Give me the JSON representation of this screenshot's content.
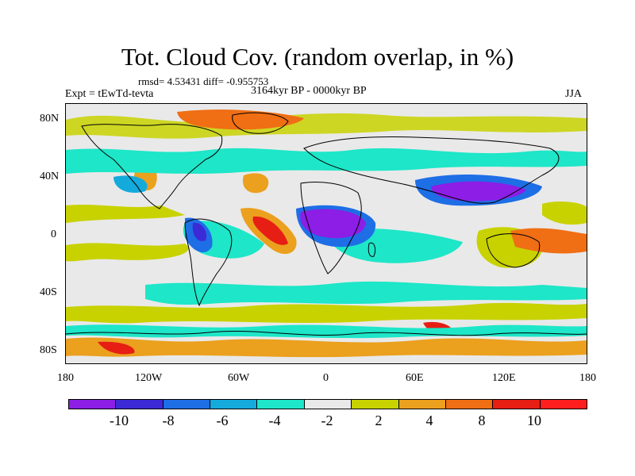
{
  "title": "Tot. Cloud Cov. (random overlap, in %)",
  "stats": "rmsd= 4.53431 diff= -0.955753",
  "expt": "Expt = tEwTd-tevta",
  "period": "3164kyr BP - 0000kyr BP",
  "season": "JJA",
  "axes": {
    "y_ticks": [
      "80N",
      "40N",
      "0",
      "40S",
      "80S"
    ],
    "x_ticks": [
      "180",
      "120W",
      "60W",
      "0",
      "60E",
      "120E",
      "180"
    ]
  },
  "colorbar": {
    "colors": [
      "#8c1ee6",
      "#3c2ad7",
      "#1e6ee6",
      "#14aadc",
      "#1ee6c8",
      "#e9e9e9",
      "#c8d200",
      "#eba01e",
      "#f06e14",
      "#e61e14",
      "#ff1e1e"
    ],
    "labels": [
      "-10",
      "-8",
      "-6",
      "-4",
      "-2",
      "2",
      "4",
      "8",
      "10"
    ]
  },
  "legend_colors": {
    "strong_decrease": "#8c1ee6",
    "decrease": "#1e6ee6",
    "slight_decrease": "#1ee6c8",
    "no_change": "#e9e9e9",
    "slight_increase": "#c8d200",
    "increase": "#eba01e",
    "strong_increase": "#e61e14"
  }
}
